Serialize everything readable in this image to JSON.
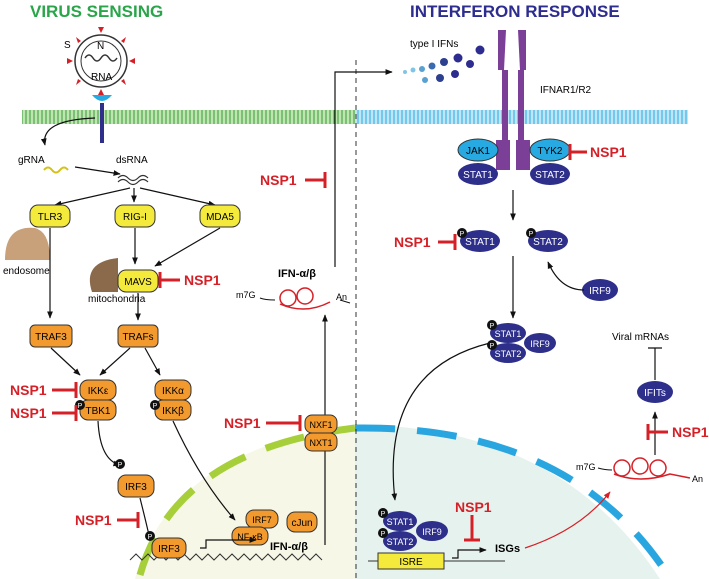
{
  "headers": {
    "left": "VIRUS SENSING",
    "right": "INTERFERON RESPONSE"
  },
  "colors": {
    "green_header": "#2aa54a",
    "blue_header": "#2d2d8f",
    "inhibitor": "#d62027",
    "yellow_node": "#f4ea3c",
    "orange_node": "#f29a2e",
    "blue_node": "#2d2f8a",
    "cyan_node": "#27a9e1",
    "purple_receptor": "#7b3f98"
  },
  "virus": {
    "s": "S",
    "n": "N",
    "rna": "RNA"
  },
  "left": {
    "grna": "gRNA",
    "dsrna": "dsRNA",
    "tlr3": "TLR3",
    "rigi": "RIG-I",
    "mda5": "MDA5",
    "mavs": "MAVS",
    "endosome": "endosome",
    "mitochondria": "mitochondria",
    "traf3": "TRAF3",
    "trafs": "TRAFs",
    "ikke": "IKKε",
    "tbk1": "TBK1",
    "ikka": "IKKα",
    "ikkb": "IKKβ",
    "irf3": "IRF3",
    "irf3_nuc": "IRF3",
    "irf7": "IRF7",
    "nfkb": "NF-κB",
    "cjun": "cJun",
    "nxf1": "NXF1",
    "nxt1": "NXT1",
    "ifn_mrna": "IFN-α/β",
    "ifn_gene": "IFN-α/β",
    "m7g": "m7G",
    "an": "An"
  },
  "right": {
    "type_i_ifns": "type I IFNs",
    "receptor": "IFNAR1/R2",
    "jak1": "JAK1",
    "tyk2": "TYK2",
    "stat1": "STAT1",
    "stat2": "STAT2",
    "stat1_p": "STAT1",
    "stat2_p": "STAT2",
    "irf9": "IRF9",
    "c_stat1": "STAT1",
    "c_stat2": "STAT2",
    "c_irf9": "IRF9",
    "n_stat1": "STAT1",
    "n_stat2": "STAT2",
    "n_irf9": "IRF9",
    "isre": "ISRE",
    "isgs": "ISGs",
    "viral_mrnas": "Viral mRNAs",
    "ifits": "IFITs",
    "m7g": "m7G",
    "an": "An"
  },
  "inhibitor_label": "NSP1",
  "phospho": "P"
}
